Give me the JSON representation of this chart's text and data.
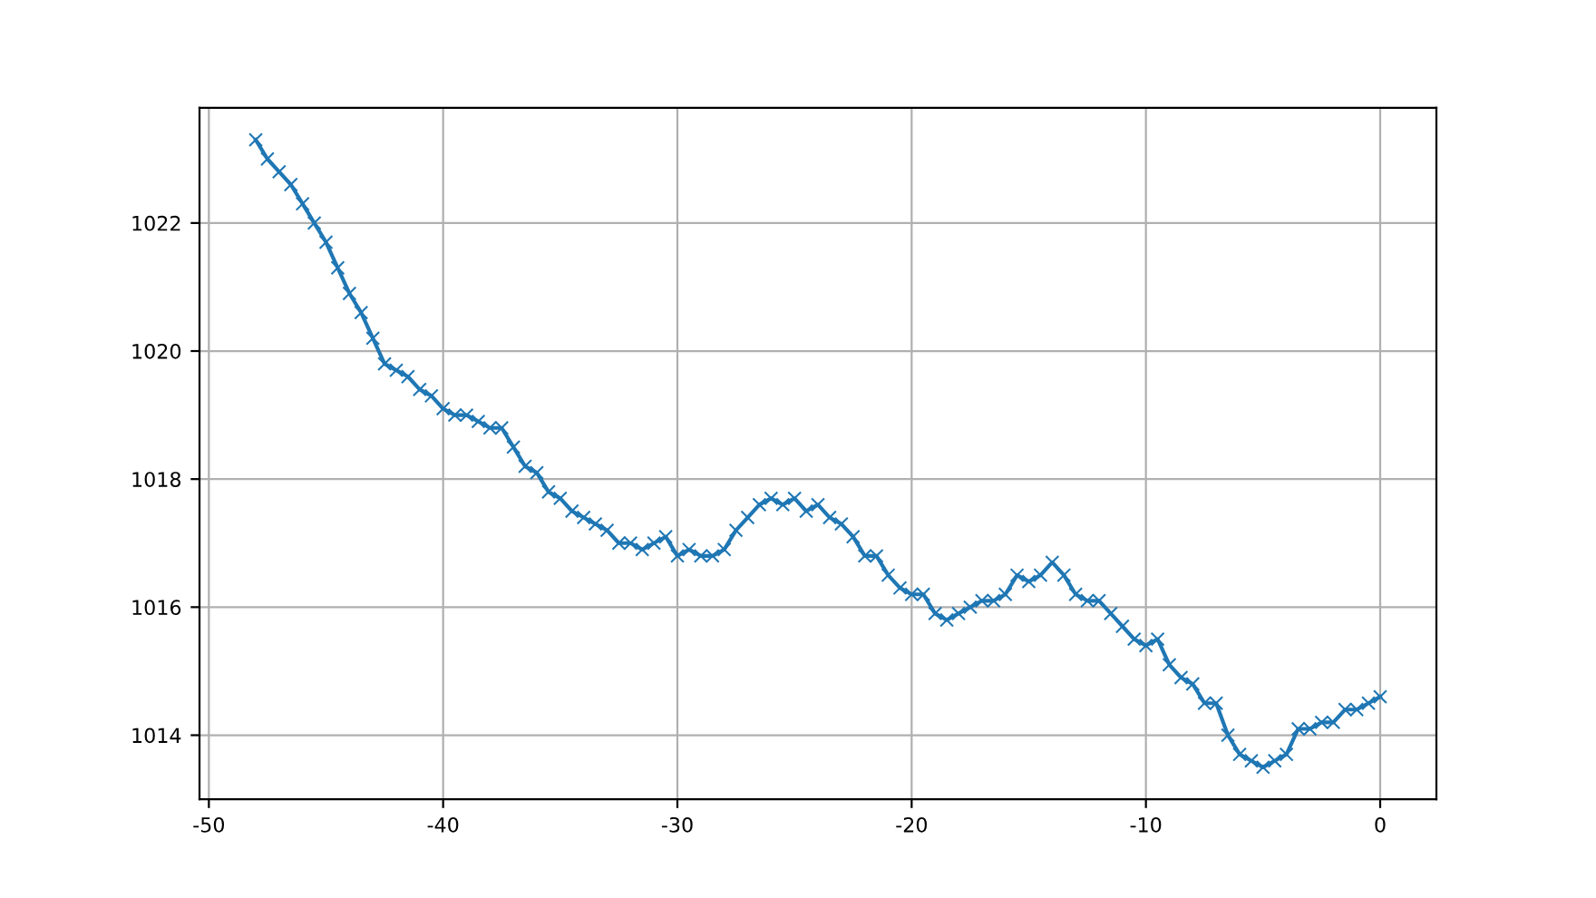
{
  "chart_data": {
    "type": "line",
    "marker": "cross",
    "grid": true,
    "xlim": [
      -50.4,
      2.4
    ],
    "xticks": [
      -50,
      -40,
      -30,
      -20,
      -10,
      0
    ],
    "ylim": [
      1013.0,
      1023.8
    ],
    "yticks": [
      1014,
      1016,
      1018,
      1020,
      1022
    ],
    "x": [
      -48,
      -47.5,
      -47,
      -46.5,
      -46,
      -45.5,
      -45,
      -44.5,
      -44,
      -43.5,
      -43,
      -42.5,
      -42,
      -41.5,
      -41,
      -40.5,
      -40,
      -39.5,
      -39,
      -38.5,
      -38,
      -37.5,
      -37,
      -36.5,
      -36,
      -35.5,
      -35,
      -34.5,
      -34,
      -33.5,
      -33,
      -32.5,
      -32,
      -31.5,
      -31,
      -30.5,
      -30,
      -29.5,
      -29,
      -28.5,
      -28,
      -27.5,
      -27,
      -26.5,
      -26,
      -25.5,
      -25,
      -24.5,
      -24,
      -23.5,
      -23,
      -22.5,
      -22,
      -21.5,
      -21,
      -20.5,
      -20,
      -19.5,
      -19,
      -18.5,
      -18,
      -17.5,
      -17,
      -16.5,
      -16,
      -15.5,
      -15,
      -14.5,
      -14,
      -13.5,
      -13,
      -12.5,
      -12,
      -11.5,
      -11,
      -10.5,
      -10,
      -9.5,
      -9,
      -8.5,
      -8,
      -7.5,
      -7,
      -6.5,
      -6,
      -5.5,
      -5,
      -4.5,
      -4,
      -3.5,
      -3,
      -2.5,
      -2,
      -1.5,
      -1,
      -0.5,
      0
    ],
    "series": [
      {
        "color": "#1f77b4",
        "values": [
          1023.3,
          1023.0,
          1022.8,
          1022.6,
          1022.3,
          1022.0,
          1021.7,
          1021.3,
          1020.9,
          1020.6,
          1020.2,
          1019.8,
          1019.7,
          1019.6,
          1019.4,
          1019.3,
          1019.1,
          1019.0,
          1019.0,
          1018.9,
          1018.8,
          1018.8,
          1018.5,
          1018.2,
          1018.1,
          1017.8,
          1017.7,
          1017.5,
          1017.4,
          1017.3,
          1017.2,
          1017.0,
          1017.0,
          1016.9,
          1017.0,
          1017.1,
          1016.8,
          1016.9,
          1016.8,
          1016.8,
          1016.9,
          1017.2,
          1017.4,
          1017.6,
          1017.7,
          1017.6,
          1017.7,
          1017.5,
          1017.6,
          1017.4,
          1017.3,
          1017.1,
          1016.8,
          1016.8,
          1016.5,
          1016.3,
          1016.2,
          1016.2,
          1015.9,
          1015.8,
          1015.9,
          1016.0,
          1016.1,
          1016.1,
          1016.2,
          1016.5,
          1016.4,
          1016.5,
          1016.7,
          1016.5,
          1016.2,
          1016.1,
          1016.1,
          1015.9,
          1015.7,
          1015.5,
          1015.4,
          1015.5,
          1015.1,
          1014.9,
          1014.8,
          1014.5,
          1014.5,
          1014.0,
          1013.7,
          1013.6,
          1013.5,
          1013.6,
          1013.7,
          1014.1,
          1014.1,
          1014.2,
          1014.2,
          1014.4,
          1014.4,
          1014.5,
          1014.6
        ]
      }
    ]
  }
}
